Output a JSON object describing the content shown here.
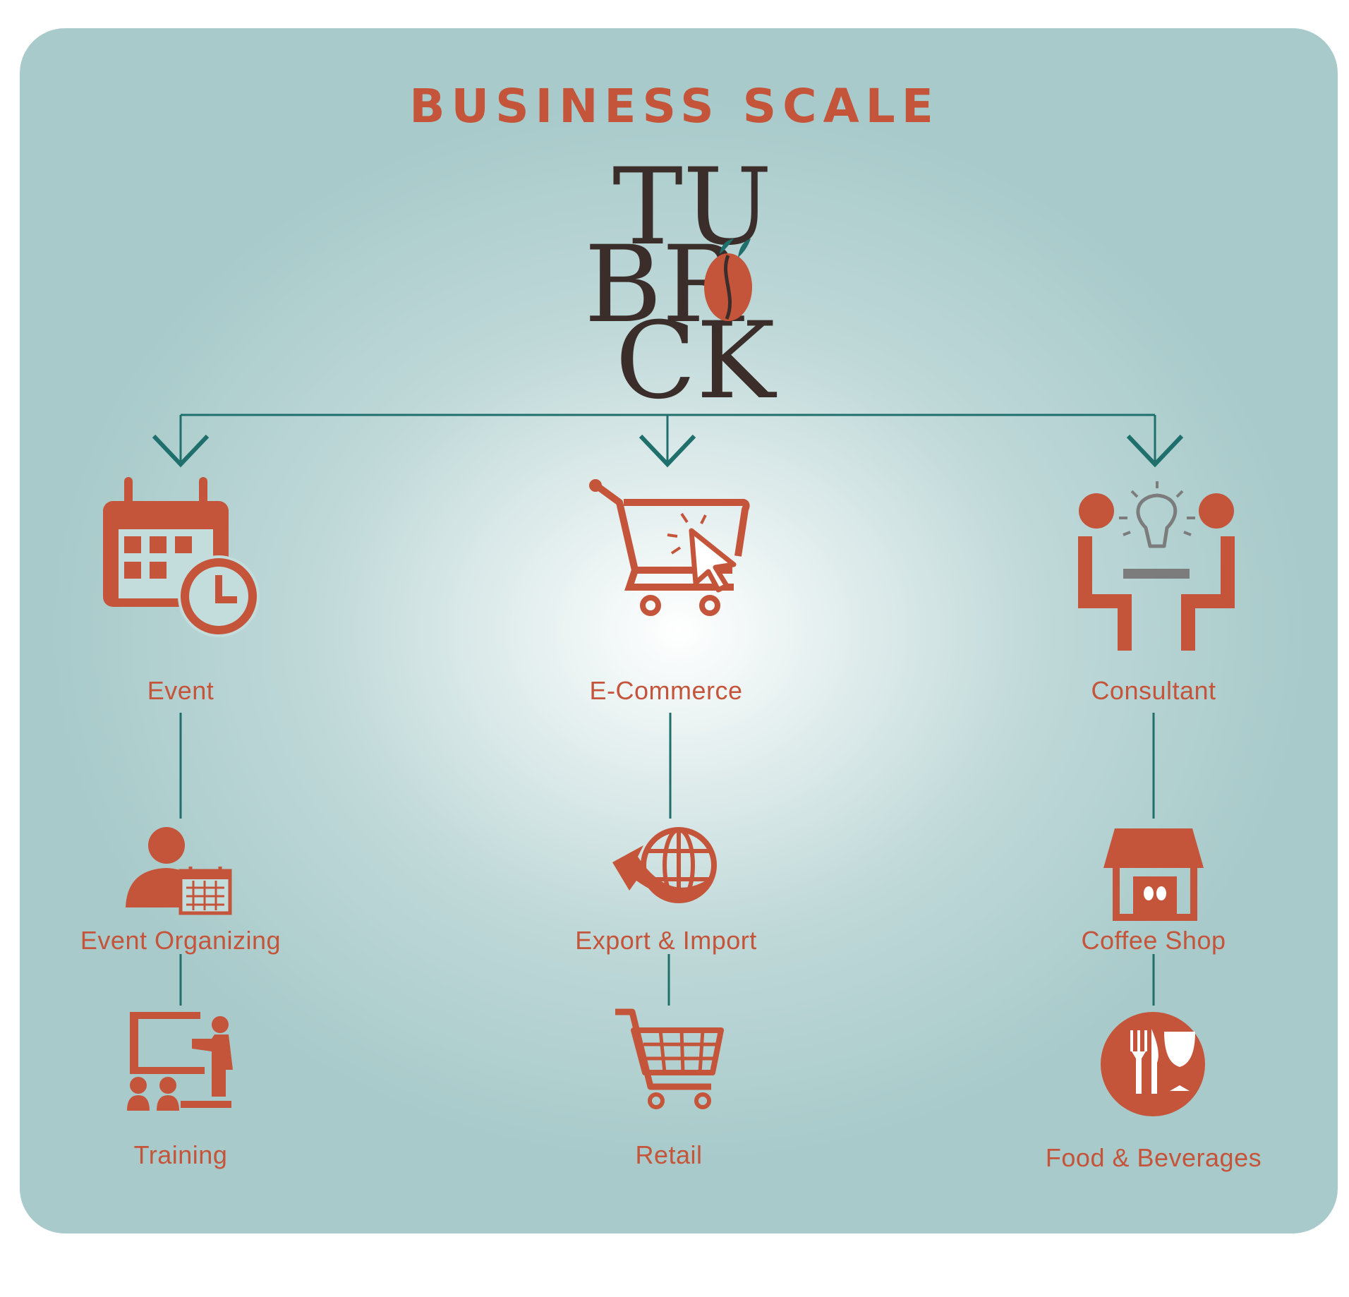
{
  "title": "BUSINESS SCALE",
  "logo": {
    "line1": "TU",
    "line2": "BR",
    "line3": "CK"
  },
  "colors": {
    "accent": "#c4543a",
    "connector": "#1f6f6c",
    "logo_text": "#3b2e2a",
    "bulb": "#7c7c7c"
  },
  "columns": [
    {
      "label": "Event",
      "icon": "calendar-clock-icon",
      "children": [
        {
          "label": "Event Organizing",
          "icon": "person-calendar-icon"
        },
        {
          "label": "Training",
          "icon": "training-presentation-icon"
        }
      ]
    },
    {
      "label": "E-Commerce",
      "icon": "cart-cursor-icon",
      "children": [
        {
          "label": "Export & Import",
          "icon": "globe-arrow-icon"
        },
        {
          "label": "Retail",
          "icon": "shopping-cart-icon"
        }
      ]
    },
    {
      "label": "Consultant",
      "icon": "consultation-icon",
      "children": [
        {
          "label": "Coffee Shop",
          "icon": "coffee-shop-icon"
        },
        {
          "label": "Food & Beverages",
          "icon": "food-beverages-icon"
        }
      ]
    }
  ]
}
